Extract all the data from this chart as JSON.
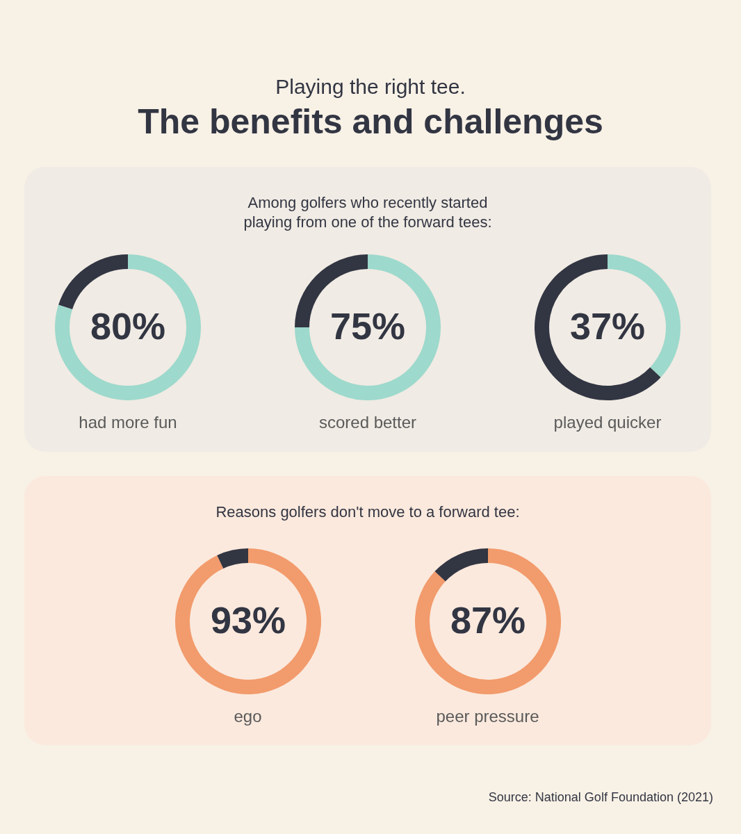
{
  "chart_data": [
    {
      "type": "donut",
      "xlabel": "had more fun",
      "categories": [
        null,
        null
      ],
      "values": [
        80,
        20
      ],
      "colors": [
        "#9dd9cc",
        "#323542"
      ],
      "value_labels": [
        "80%",
        null
      ]
    },
    {
      "type": "donut",
      "title": "The benefits and challenges",
      "subtitle": "Playing the right tee.",
      "annotations": [
        "Among golfers who recently started playing from one of the forward tees:"
      ],
      "xlabel": "scored better",
      "categories": [
        null,
        null
      ],
      "values": [
        75,
        25
      ],
      "colors": [
        "#9dd9cc",
        "#323542"
      ],
      "value_labels": [
        "75%",
        null
      ]
    },
    {
      "type": "donut",
      "xlabel": "played quicker",
      "categories": [
        null,
        null
      ],
      "values": [
        37,
        63
      ],
      "colors": [
        "#9dd9cc",
        "#323542"
      ],
      "value_labels": [
        "37%",
        null
      ]
    },
    {
      "type": "donut",
      "annotations": [
        "Reasons golfers don't move to a forward tee:"
      ],
      "xlabel": "ego",
      "categories": [
        null,
        null
      ],
      "values": [
        93,
        7
      ],
      "colors": [
        "#f29b6c",
        "#323542"
      ],
      "value_labels": [
        "93%",
        null
      ]
    },
    {
      "type": "donut",
      "annotations": [
        "Source: National Golf Foundation (2021)"
      ],
      "xlabel": "peer pressure",
      "categories": [
        null,
        null
      ],
      "values": [
        87,
        13
      ],
      "colors": [
        "#f29b6c",
        "#323542"
      ],
      "value_labels": [
        "87%",
        null
      ]
    }
  ]
}
